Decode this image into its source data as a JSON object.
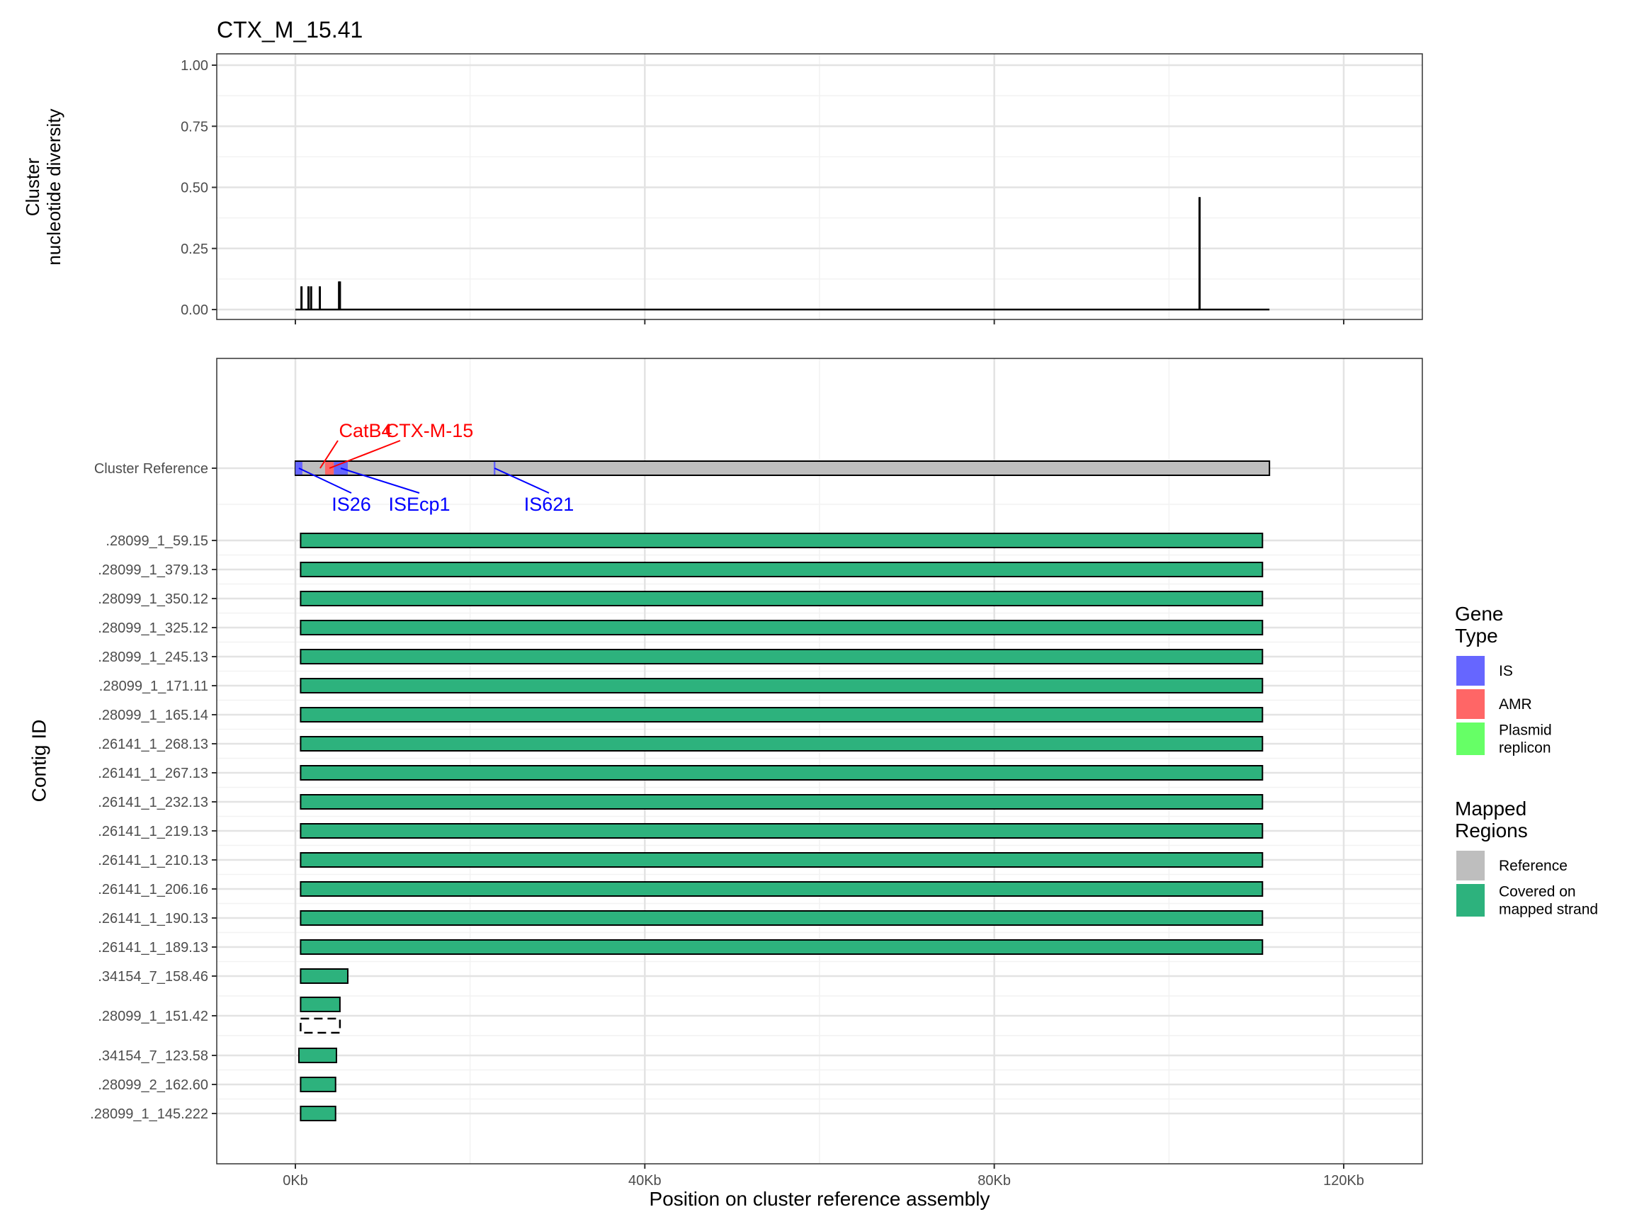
{
  "title": "CTX_M_15.41",
  "colors": {
    "is": "#6666ff",
    "amr": "#ff6666",
    "plasmid": "#66ff66",
    "reference": "#bebebe",
    "covered": "#2db27d",
    "is_label": "#0000ff",
    "amr_label": "#ff0000"
  },
  "chart_data": [
    {
      "type": "line",
      "ylabel_lines": [
        "Cluster",
        "nucleotide diversity"
      ],
      "ylim": [
        0,
        1
      ],
      "xlim": [
        -9000,
        129000
      ],
      "yticks": [
        {
          "value": 1.0,
          "label": "1.00"
        },
        {
          "value": 0.75,
          "label": "0.75"
        },
        {
          "value": 0.5,
          "label": "0.50"
        },
        {
          "value": 0.25,
          "label": "0.25"
        },
        {
          "value": 0.0,
          "label": "0.00"
        }
      ],
      "baseline": {
        "start": 0,
        "end": 111500
      },
      "spikes": [
        {
          "x": 700,
          "y": 0.095
        },
        {
          "x": 1500,
          "y": 0.095
        },
        {
          "x": 1800,
          "y": 0.095
        },
        {
          "x": 2800,
          "y": 0.095
        },
        {
          "x": 5000,
          "y": 0.115
        },
        {
          "x": 5100,
          "y": 0.115
        },
        {
          "x": 103500,
          "y": 0.46
        }
      ],
      "grid": true
    },
    {
      "type": "bar",
      "orientation": "horizontal",
      "xlabel": "Position on cluster reference assembly",
      "ylabel": "Contig ID",
      "xlim": [
        -9000,
        129000
      ],
      "xticks": [
        {
          "value": 0,
          "label": "0Kb"
        },
        {
          "value": 40000,
          "label": "40Kb"
        },
        {
          "value": 80000,
          "label": "80Kb"
        },
        {
          "value": 120000,
          "label": "120Kb"
        }
      ],
      "reference": {
        "label": "Cluster Reference",
        "start": 0,
        "end": 111500,
        "features": [
          {
            "name": "CatB4",
            "type": "AMR",
            "start": 0,
            "end": 800,
            "label_pos": "above"
          },
          {
            "name": "IS26",
            "type": "IS",
            "start": 0,
            "end": 800,
            "label_pos": "below"
          },
          {
            "name": "CTX-M-15",
            "type": "AMR",
            "start": 3400,
            "end": 4400,
            "label_pos": "above"
          },
          {
            "name": "ISEcp1",
            "type": "IS",
            "start": 4400,
            "end": 6000,
            "label_pos": "below"
          },
          {
            "name": "IS621",
            "type": "IS",
            "start": 22700,
            "end": 22900,
            "label_pos": "below"
          }
        ]
      },
      "contigs": [
        {
          "label": ".28099_1_59.15",
          "start": 600,
          "end": 110700
        },
        {
          "label": ".28099_1_379.13",
          "start": 600,
          "end": 110700
        },
        {
          "label": ".28099_1_350.12",
          "start": 600,
          "end": 110700
        },
        {
          "label": ".28099_1_325.12",
          "start": 600,
          "end": 110700
        },
        {
          "label": ".28099_1_245.13",
          "start": 600,
          "end": 110700
        },
        {
          "label": ".28099_1_171.11",
          "start": 600,
          "end": 110700
        },
        {
          "label": ".28099_1_165.14",
          "start": 600,
          "end": 110700
        },
        {
          "label": ".26141_1_268.13",
          "start": 600,
          "end": 110700
        },
        {
          "label": ".26141_1_267.13",
          "start": 600,
          "end": 110700
        },
        {
          "label": ".26141_1_232.13",
          "start": 600,
          "end": 110700
        },
        {
          "label": ".26141_1_219.13",
          "start": 600,
          "end": 110700
        },
        {
          "label": ".26141_1_210.13",
          "start": 600,
          "end": 110700
        },
        {
          "label": ".26141_1_206.16",
          "start": 600,
          "end": 110700
        },
        {
          "label": ".26141_1_190.13",
          "start": 600,
          "end": 110700
        },
        {
          "label": ".26141_1_189.13",
          "start": 600,
          "end": 110700
        },
        {
          "label": ".34154_7_158.46",
          "start": 600,
          "end": 6000
        },
        {
          "label": ".28099_1_151.42",
          "start": 600,
          "end": 5100,
          "segments": [
            {
              "start": 600,
              "end": 5100,
              "covered": true
            },
            {
              "start": 600,
              "end": 5100,
              "covered": false
            }
          ]
        },
        {
          "label": ".34154_7_123.58",
          "start": 400,
          "end": 4700
        },
        {
          "label": ".28099_2_162.60",
          "start": 600,
          "end": 4600
        },
        {
          "label": ".28099_1_145.222",
          "start": 600,
          "end": 4600
        }
      ],
      "grid": true
    }
  ],
  "legend": {
    "gene_type": {
      "title_lines": [
        "Gene",
        "Type"
      ],
      "items": [
        {
          "lines": [
            "IS"
          ],
          "color": "#6666ff"
        },
        {
          "lines": [
            "AMR"
          ],
          "color": "#ff6666"
        },
        {
          "lines": [
            "Plasmid",
            "replicon"
          ],
          "color": "#66ff66"
        }
      ]
    },
    "mapped_regions": {
      "title_lines": [
        "Mapped",
        "Regions"
      ],
      "items": [
        {
          "lines": [
            "Reference"
          ],
          "color": "#bebebe"
        },
        {
          "lines": [
            "Covered on",
            "mapped strand"
          ],
          "color": "#2db27d"
        }
      ]
    }
  }
}
